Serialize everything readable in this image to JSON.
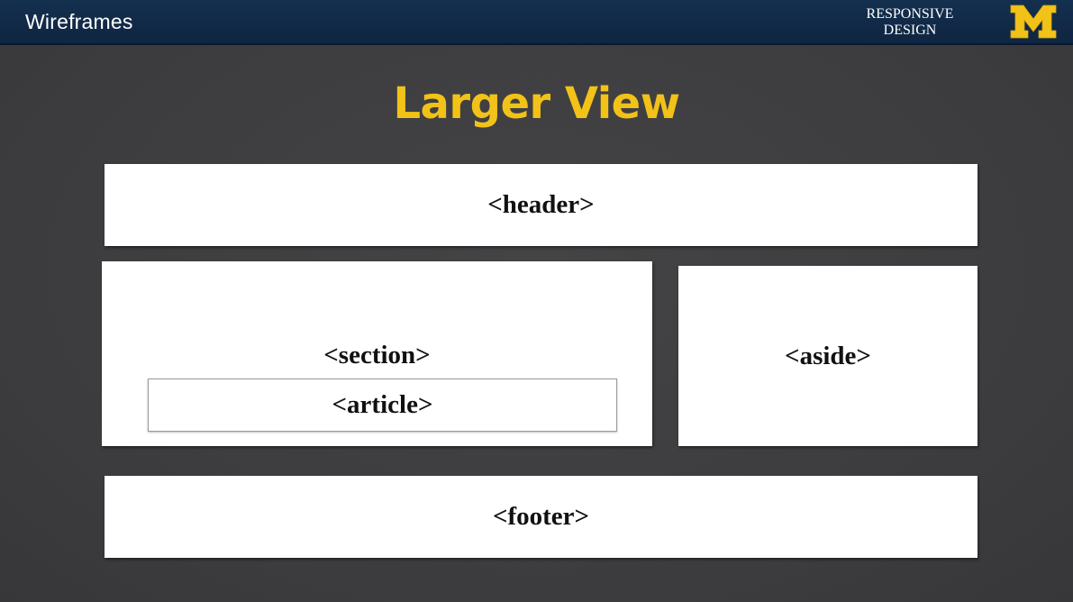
{
  "topbar": {
    "title": "Wireframes",
    "course_line1": "RESPONSIVE",
    "course_line2": "DESIGN",
    "logo_letter": "M",
    "logo_color": "#f2c218",
    "background_color": "#14304f"
  },
  "slide": {
    "title": "Larger View",
    "title_color": "#f2c218",
    "background_color": "#3f3f41"
  },
  "wireframe": {
    "header_label": "<header>",
    "section_label": "<section>",
    "article_label": "<article>",
    "aside_label": "<aside>",
    "footer_label": "<footer>"
  }
}
